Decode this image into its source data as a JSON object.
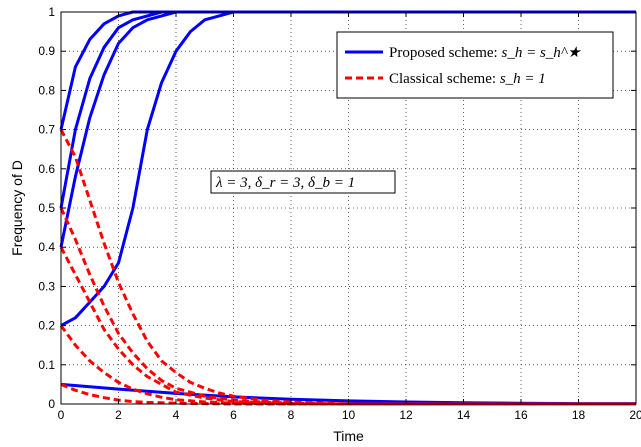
{
  "chart_data": {
    "type": "line",
    "title": "",
    "xlabel": "Time",
    "ylabel": "Frequency of D",
    "xlim": [
      0,
      20
    ],
    "ylim": [
      0,
      1
    ],
    "xticks": [
      0,
      2,
      4,
      6,
      8,
      10,
      12,
      14,
      16,
      18,
      20
    ],
    "yticks": [
      0,
      0.1,
      0.2,
      0.3,
      0.4,
      0.5,
      0.6,
      0.7,
      0.8,
      0.9,
      1
    ],
    "xtick_labels": [
      "0",
      "2",
      "4",
      "6",
      "8",
      "10",
      "12",
      "14",
      "16",
      "18",
      "20"
    ],
    "ytick_labels": [
      "0",
      "0.1",
      "0.2",
      "0.3",
      "0.4",
      "0.5",
      "0.6",
      "0.7",
      "0.8",
      "0.9",
      "1"
    ],
    "grid": true,
    "legend_position": "top-right",
    "legend": [
      {
        "label": "Proposed scheme: ",
        "math": "s_h = s_h^★",
        "style": "solid",
        "color": "#0000ff"
      },
      {
        "label": "Classical scheme: ",
        "math": "s_h = 1",
        "style": "dashed",
        "color": "#ff0000"
      }
    ],
    "annotation": "λ = 3, δ_r = 3, δ_b = 1",
    "colors": {
      "proposed": "#0000ff",
      "classical": "#ff0000"
    },
    "series": [
      {
        "group": "proposed",
        "x": [
          0,
          0.5,
          1,
          1.5,
          2,
          2.5,
          3,
          4,
          6,
          20
        ],
        "y": [
          0.7,
          0.86,
          0.93,
          0.97,
          0.99,
          1.0,
          1.0,
          1.0,
          1.0,
          1.0
        ]
      },
      {
        "group": "proposed",
        "x": [
          0,
          0.5,
          1,
          1.5,
          2,
          2.5,
          3,
          3.5,
          4,
          6,
          20
        ],
        "y": [
          0.5,
          0.7,
          0.83,
          0.91,
          0.96,
          0.98,
          0.99,
          1.0,
          1.0,
          1.0,
          1.0
        ]
      },
      {
        "group": "proposed",
        "x": [
          0,
          0.5,
          1,
          1.5,
          2,
          2.5,
          3,
          3.5,
          4,
          5,
          20
        ],
        "y": [
          0.4,
          0.58,
          0.73,
          0.84,
          0.92,
          0.96,
          0.98,
          0.99,
          1.0,
          1.0,
          1.0
        ]
      },
      {
        "group": "proposed",
        "x": [
          0,
          0.5,
          1,
          1.5,
          2,
          2.5,
          3,
          3.5,
          4,
          4.5,
          5,
          5.5,
          6,
          7,
          20
        ],
        "y": [
          0.2,
          0.22,
          0.26,
          0.3,
          0.36,
          0.5,
          0.7,
          0.82,
          0.9,
          0.95,
          0.98,
          0.99,
          1.0,
          1.0,
          1.0
        ]
      },
      {
        "group": "proposed",
        "x": [
          0,
          2,
          4,
          6,
          8,
          10,
          12,
          14,
          16,
          18,
          20
        ],
        "y": [
          0.05,
          0.038,
          0.027,
          0.018,
          0.012,
          0.008,
          0.005,
          0.003,
          0.002,
          0.001,
          0.001
        ]
      },
      {
        "group": "classical",
        "x": [
          0,
          0.5,
          1,
          1.5,
          2,
          2.5,
          3,
          3.5,
          4,
          4.5,
          5,
          5.5,
          6,
          7,
          8,
          10,
          12,
          14,
          20
        ],
        "y": [
          0.7,
          0.63,
          0.52,
          0.41,
          0.31,
          0.23,
          0.16,
          0.11,
          0.08,
          0.055,
          0.04,
          0.028,
          0.02,
          0.01,
          0.005,
          0.0,
          0.0,
          0.0,
          0.0
        ]
      },
      {
        "group": "classical",
        "x": [
          0,
          0.5,
          1,
          1.5,
          2,
          2.5,
          3,
          3.5,
          4,
          4.5,
          5,
          6,
          7,
          8,
          10,
          12,
          20
        ],
        "y": [
          0.5,
          0.42,
          0.33,
          0.25,
          0.18,
          0.13,
          0.09,
          0.06,
          0.04,
          0.03,
          0.02,
          0.01,
          0.005,
          0.002,
          0.0,
          0.0,
          0.0
        ]
      },
      {
        "group": "classical",
        "x": [
          0,
          0.5,
          1,
          1.5,
          2,
          2.5,
          3,
          3.5,
          4,
          5,
          6,
          8,
          10,
          20
        ],
        "y": [
          0.4,
          0.33,
          0.26,
          0.19,
          0.14,
          0.1,
          0.07,
          0.05,
          0.03,
          0.015,
          0.006,
          0.001,
          0.0,
          0.0
        ]
      },
      {
        "group": "classical",
        "x": [
          0,
          0.5,
          1,
          1.5,
          2,
          2.5,
          3,
          3.5,
          4,
          5,
          6,
          8,
          10,
          20
        ],
        "y": [
          0.2,
          0.15,
          0.11,
          0.08,
          0.055,
          0.038,
          0.026,
          0.017,
          0.011,
          0.005,
          0.002,
          0.0,
          0.0,
          0.0
        ]
      },
      {
        "group": "classical",
        "x": [
          0,
          0.5,
          1,
          1.5,
          2,
          2.5,
          3,
          4,
          5,
          6,
          8,
          20
        ],
        "y": [
          0.05,
          0.035,
          0.024,
          0.016,
          0.01,
          0.006,
          0.004,
          0.002,
          0.001,
          0.0,
          0.0,
          0.0
        ]
      }
    ]
  }
}
